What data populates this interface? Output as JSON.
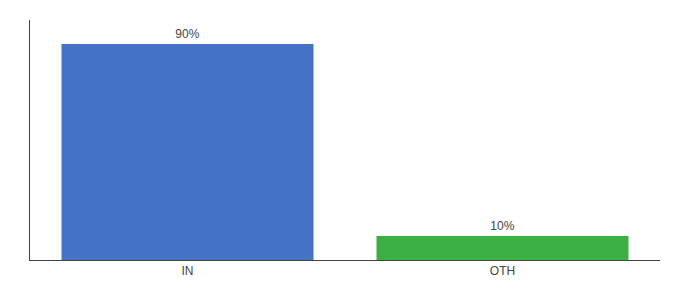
{
  "chart_data": {
    "type": "bar",
    "categories": [
      "IN",
      "OTH"
    ],
    "values": [
      90,
      10
    ],
    "value_labels": [
      "90%",
      "10%"
    ],
    "colors": [
      "#4472c4",
      "#3cb043"
    ],
    "ylim": [
      0,
      100
    ],
    "yticks": [],
    "data_labels": true,
    "tick_labels": "x",
    "grid": false
  }
}
